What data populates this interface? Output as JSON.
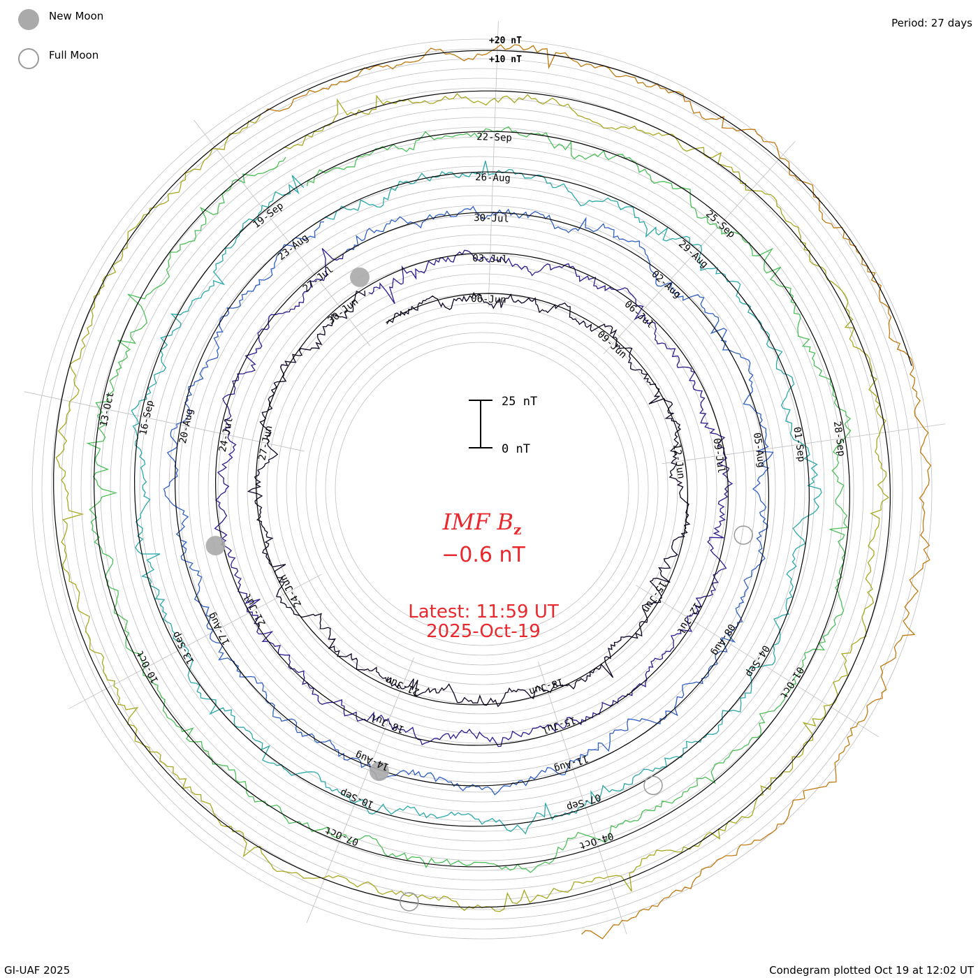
{
  "legend": {
    "new_moon": "New Moon",
    "full_moon": "Full Moon"
  },
  "period": "Period: 27 days",
  "credit": "GI-UAF 2025",
  "plotted": "Condegram plotted Oct 19 at 12:02 UT",
  "scale_bar": {
    "top": "25 nT",
    "bottom": "0 nT"
  },
  "top_scale": {
    "plus20": "+20 nT",
    "plus10": "+10 nT"
  },
  "center": {
    "title_main": "IMF B",
    "title_sub": "z",
    "value": "−0.6 nT",
    "latest": "Latest: 11:59 UT",
    "date": "2025-Oct-19"
  },
  "colors": {
    "text_red": "#e8282c",
    "grid": "#bfbfbf",
    "baseline": "#000000",
    "moon_fill": "#aaaaaa"
  },
  "chart_data": {
    "type": "condegram",
    "title": "IMF Bz",
    "current_value_nT": -0.6,
    "period_days": 27,
    "radial_scale_nT": {
      "bar_top": 25,
      "bar_bottom": 0,
      "labels": [
        10,
        20
      ]
    },
    "turns": [
      {
        "index": 0,
        "color": "#0d0221",
        "labels": [
          {
            "date": "06-Jun",
            "angle": 2
          },
          {
            "date": "09-Jun",
            "angle": 42
          },
          {
            "date": "12-Jun",
            "angle": 82
          },
          {
            "date": "15-Jun",
            "angle": 122
          },
          {
            "date": "18-Jun",
            "angle": 162
          },
          {
            "date": "21-Jun",
            "angle": 202
          },
          {
            "date": "24-Jun",
            "angle": 242
          },
          {
            "date": "27-Jun",
            "angle": 282
          },
          {
            "date": "30-Jun",
            "angle": 322
          }
        ]
      },
      {
        "index": 1,
        "color": "#2a1c8e",
        "labels": [
          {
            "date": "03-Jul",
            "angle": 2
          },
          {
            "date": "06-Jul",
            "angle": 42
          },
          {
            "date": "09-Jul",
            "angle": 82
          },
          {
            "date": "12-Jul",
            "angle": 122
          },
          {
            "date": "15-Jul",
            "angle": 162
          },
          {
            "date": "18-Jul",
            "angle": 202
          },
          {
            "date": "21-Jul",
            "angle": 242
          },
          {
            "date": "24-Jul",
            "angle": 282
          },
          {
            "date": "27-Jul",
            "angle": 322
          }
        ]
      },
      {
        "index": 2,
        "color": "#2f5fc2",
        "labels": [
          {
            "date": "30-Jul",
            "angle": 2
          },
          {
            "date": "02-Aug",
            "angle": 42
          },
          {
            "date": "05-Aug",
            "angle": 82
          },
          {
            "date": "08-Aug",
            "angle": 122
          },
          {
            "date": "11-Aug",
            "angle": 162
          },
          {
            "date": "14-Aug",
            "angle": 202
          },
          {
            "date": "17-Aug",
            "angle": 242
          },
          {
            "date": "20-Aug",
            "angle": 282
          },
          {
            "date": "23-Aug",
            "angle": 322
          }
        ]
      },
      {
        "index": 3,
        "color": "#2ba8a8",
        "labels": [
          {
            "date": "26-Aug",
            "angle": 2
          },
          {
            "date": "29-Aug",
            "angle": 42
          },
          {
            "date": "01-Sep",
            "angle": 82
          },
          {
            "date": "04-Sep",
            "angle": 122
          },
          {
            "date": "07-Sep",
            "angle": 162
          },
          {
            "date": "10-Sep",
            "angle": 202
          },
          {
            "date": "13-Sep",
            "angle": 242
          },
          {
            "date": "16-Sep",
            "angle": 282
          },
          {
            "date": "19-Sep",
            "angle": 322
          }
        ]
      },
      {
        "index": 4,
        "color": "#4cbf58",
        "labels": [
          {
            "date": "22-Sep",
            "angle": 2
          },
          {
            "date": "25-Sep",
            "angle": 42
          },
          {
            "date": "28-Sep",
            "angle": 82
          },
          {
            "date": "01-Oct",
            "angle": 122
          },
          {
            "date": "04-Oct",
            "angle": 162
          },
          {
            "date": "07-Oct",
            "angle": 202
          },
          {
            "date": "10-Oct",
            "angle": 242
          },
          {
            "date": "13-Oct",
            "angle": 282
          }
        ]
      },
      {
        "index": 5,
        "color": "#a8a820",
        "labels": []
      },
      {
        "index": 6,
        "color": "#c07a10",
        "labels": []
      },
      {
        "index": 7,
        "color": "#b8181a",
        "labels": []
      }
    ],
    "new_moon_angles": [
      330,
      258,
      200
    ],
    "full_moon_angles": [
      100,
      150,
      190
    ]
  }
}
